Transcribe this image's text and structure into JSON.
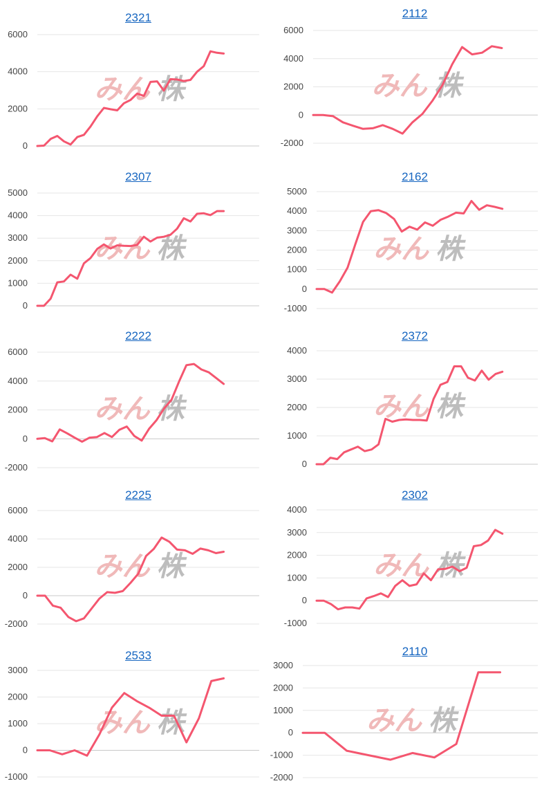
{
  "watermark": {
    "text_left": "みん",
    "text_right": "株",
    "color_left": "#f0b9b9",
    "color_right": "#bdbdbd"
  },
  "line_color": "#f4566f",
  "chart_data": [
    {
      "type": "line",
      "title": "2321",
      "ylim": [
        0,
        6000
      ],
      "ticks": [
        0,
        2000,
        4000,
        6000
      ],
      "grid": true,
      "values": [
        0,
        20,
        380,
        540,
        250,
        80,
        480,
        600,
        1050,
        1600,
        2050,
        1980,
        1920,
        2300,
        2480,
        2820,
        2700,
        3450,
        3480,
        2980,
        3600,
        3580,
        3500,
        3560,
        4000,
        4300,
        5100,
        5020,
        4980
      ]
    },
    {
      "type": "line",
      "title": "2112",
      "ylim": [
        -2000,
        6000
      ],
      "ticks": [
        -2000,
        0,
        2000,
        4000,
        6000
      ],
      "grid": true,
      "values": [
        0,
        0,
        -80,
        -520,
        -760,
        -980,
        -940,
        -720,
        -980,
        -1320,
        -520,
        80,
        1000,
        2100,
        3600,
        4820,
        4300,
        4420,
        4880,
        4750
      ]
    },
    {
      "type": "line",
      "title": "2307",
      "ylim": [
        0,
        5000
      ],
      "ticks": [
        0,
        1000,
        2000,
        3000,
        4000,
        5000
      ],
      "grid": true,
      "values": [
        0,
        0,
        320,
        1040,
        1080,
        1380,
        1200,
        1880,
        2120,
        2520,
        2720,
        2540,
        2680,
        2660,
        2650,
        2700,
        3060,
        2850,
        3020,
        3060,
        3150,
        3420,
        3880,
        3740,
        4080,
        4100,
        4020,
        4200,
        4200
      ]
    },
    {
      "type": "line",
      "title": "2162",
      "ylim": [
        -1000,
        5000
      ],
      "ticks": [
        -1000,
        0,
        1000,
        2000,
        3000,
        4000,
        5000
      ],
      "grid": true,
      "values": [
        0,
        0,
        -180,
        400,
        1100,
        2300,
        3450,
        4000,
        4050,
        3900,
        3600,
        2950,
        3200,
        3050,
        3420,
        3250,
        3550,
        3720,
        3920,
        3880,
        4520,
        4070,
        4300,
        4220,
        4120
      ]
    },
    {
      "type": "line",
      "title": "2222",
      "ylim": [
        -2000,
        6000
      ],
      "ticks": [
        -2000,
        0,
        2000,
        4000,
        6000
      ],
      "grid": true,
      "values": [
        0,
        50,
        -180,
        650,
        380,
        80,
        -200,
        80,
        120,
        400,
        120,
        620,
        850,
        200,
        -120,
        700,
        1300,
        2100,
        2700,
        3950,
        5100,
        5180,
        4800,
        4600,
        4200,
        3800
      ]
    },
    {
      "type": "line",
      "title": "2372",
      "ylim": [
        0,
        4000
      ],
      "ticks": [
        0,
        1000,
        2000,
        3000,
        4000
      ],
      "grid": true,
      "values": [
        0,
        0,
        230,
        180,
        420,
        520,
        620,
        460,
        520,
        700,
        1600,
        1500,
        1560,
        1580,
        1560,
        1560,
        1540,
        2300,
        2800,
        2900,
        3450,
        3450,
        3050,
        2950,
        3300,
        2980,
        3180,
        3260
      ]
    },
    {
      "type": "line",
      "title": "2225",
      "ylim": [
        -2000,
        6000
      ],
      "ticks": [
        -2000,
        0,
        2000,
        4000,
        6000
      ],
      "grid": true,
      "values": [
        0,
        0,
        -700,
        -850,
        -1500,
        -1800,
        -1600,
        -900,
        -200,
        250,
        200,
        320,
        900,
        1550,
        2800,
        3300,
        4100,
        3800,
        3250,
        3200,
        2950,
        3320,
        3200,
        3000,
        3100
      ]
    },
    {
      "type": "line",
      "title": "2302",
      "ylim": [
        -1000,
        4000
      ],
      "ticks": [
        -1000,
        0,
        1000,
        2000,
        3000,
        4000
      ],
      "grid": true,
      "values": [
        0,
        0,
        -150,
        -380,
        -300,
        -300,
        -350,
        100,
        200,
        320,
        160,
        650,
        900,
        650,
        720,
        1200,
        900,
        1380,
        1400,
        1500,
        1300,
        1450,
        2400,
        2450,
        2650,
        3120,
        2950
      ]
    },
    {
      "type": "line",
      "title": "2533",
      "ylim": [
        -1000,
        3000
      ],
      "ticks": [
        -1000,
        0,
        1000,
        2000,
        3000
      ],
      "grid": true,
      "values": [
        0,
        0,
        -150,
        0,
        -200,
        600,
        1600,
        2150,
        1850,
        1600,
        1300,
        1300,
        300,
        1200,
        2600,
        2700
      ]
    },
    {
      "type": "line",
      "title": "2110",
      "ylim": [
        -2000,
        3000
      ],
      "ticks": [
        -2000,
        -1000,
        0,
        1000,
        2000,
        3000
      ],
      "grid": true,
      "values": [
        0,
        0,
        -800,
        -1000,
        -1200,
        -900,
        -1100,
        -500,
        2700,
        2700
      ]
    }
  ]
}
